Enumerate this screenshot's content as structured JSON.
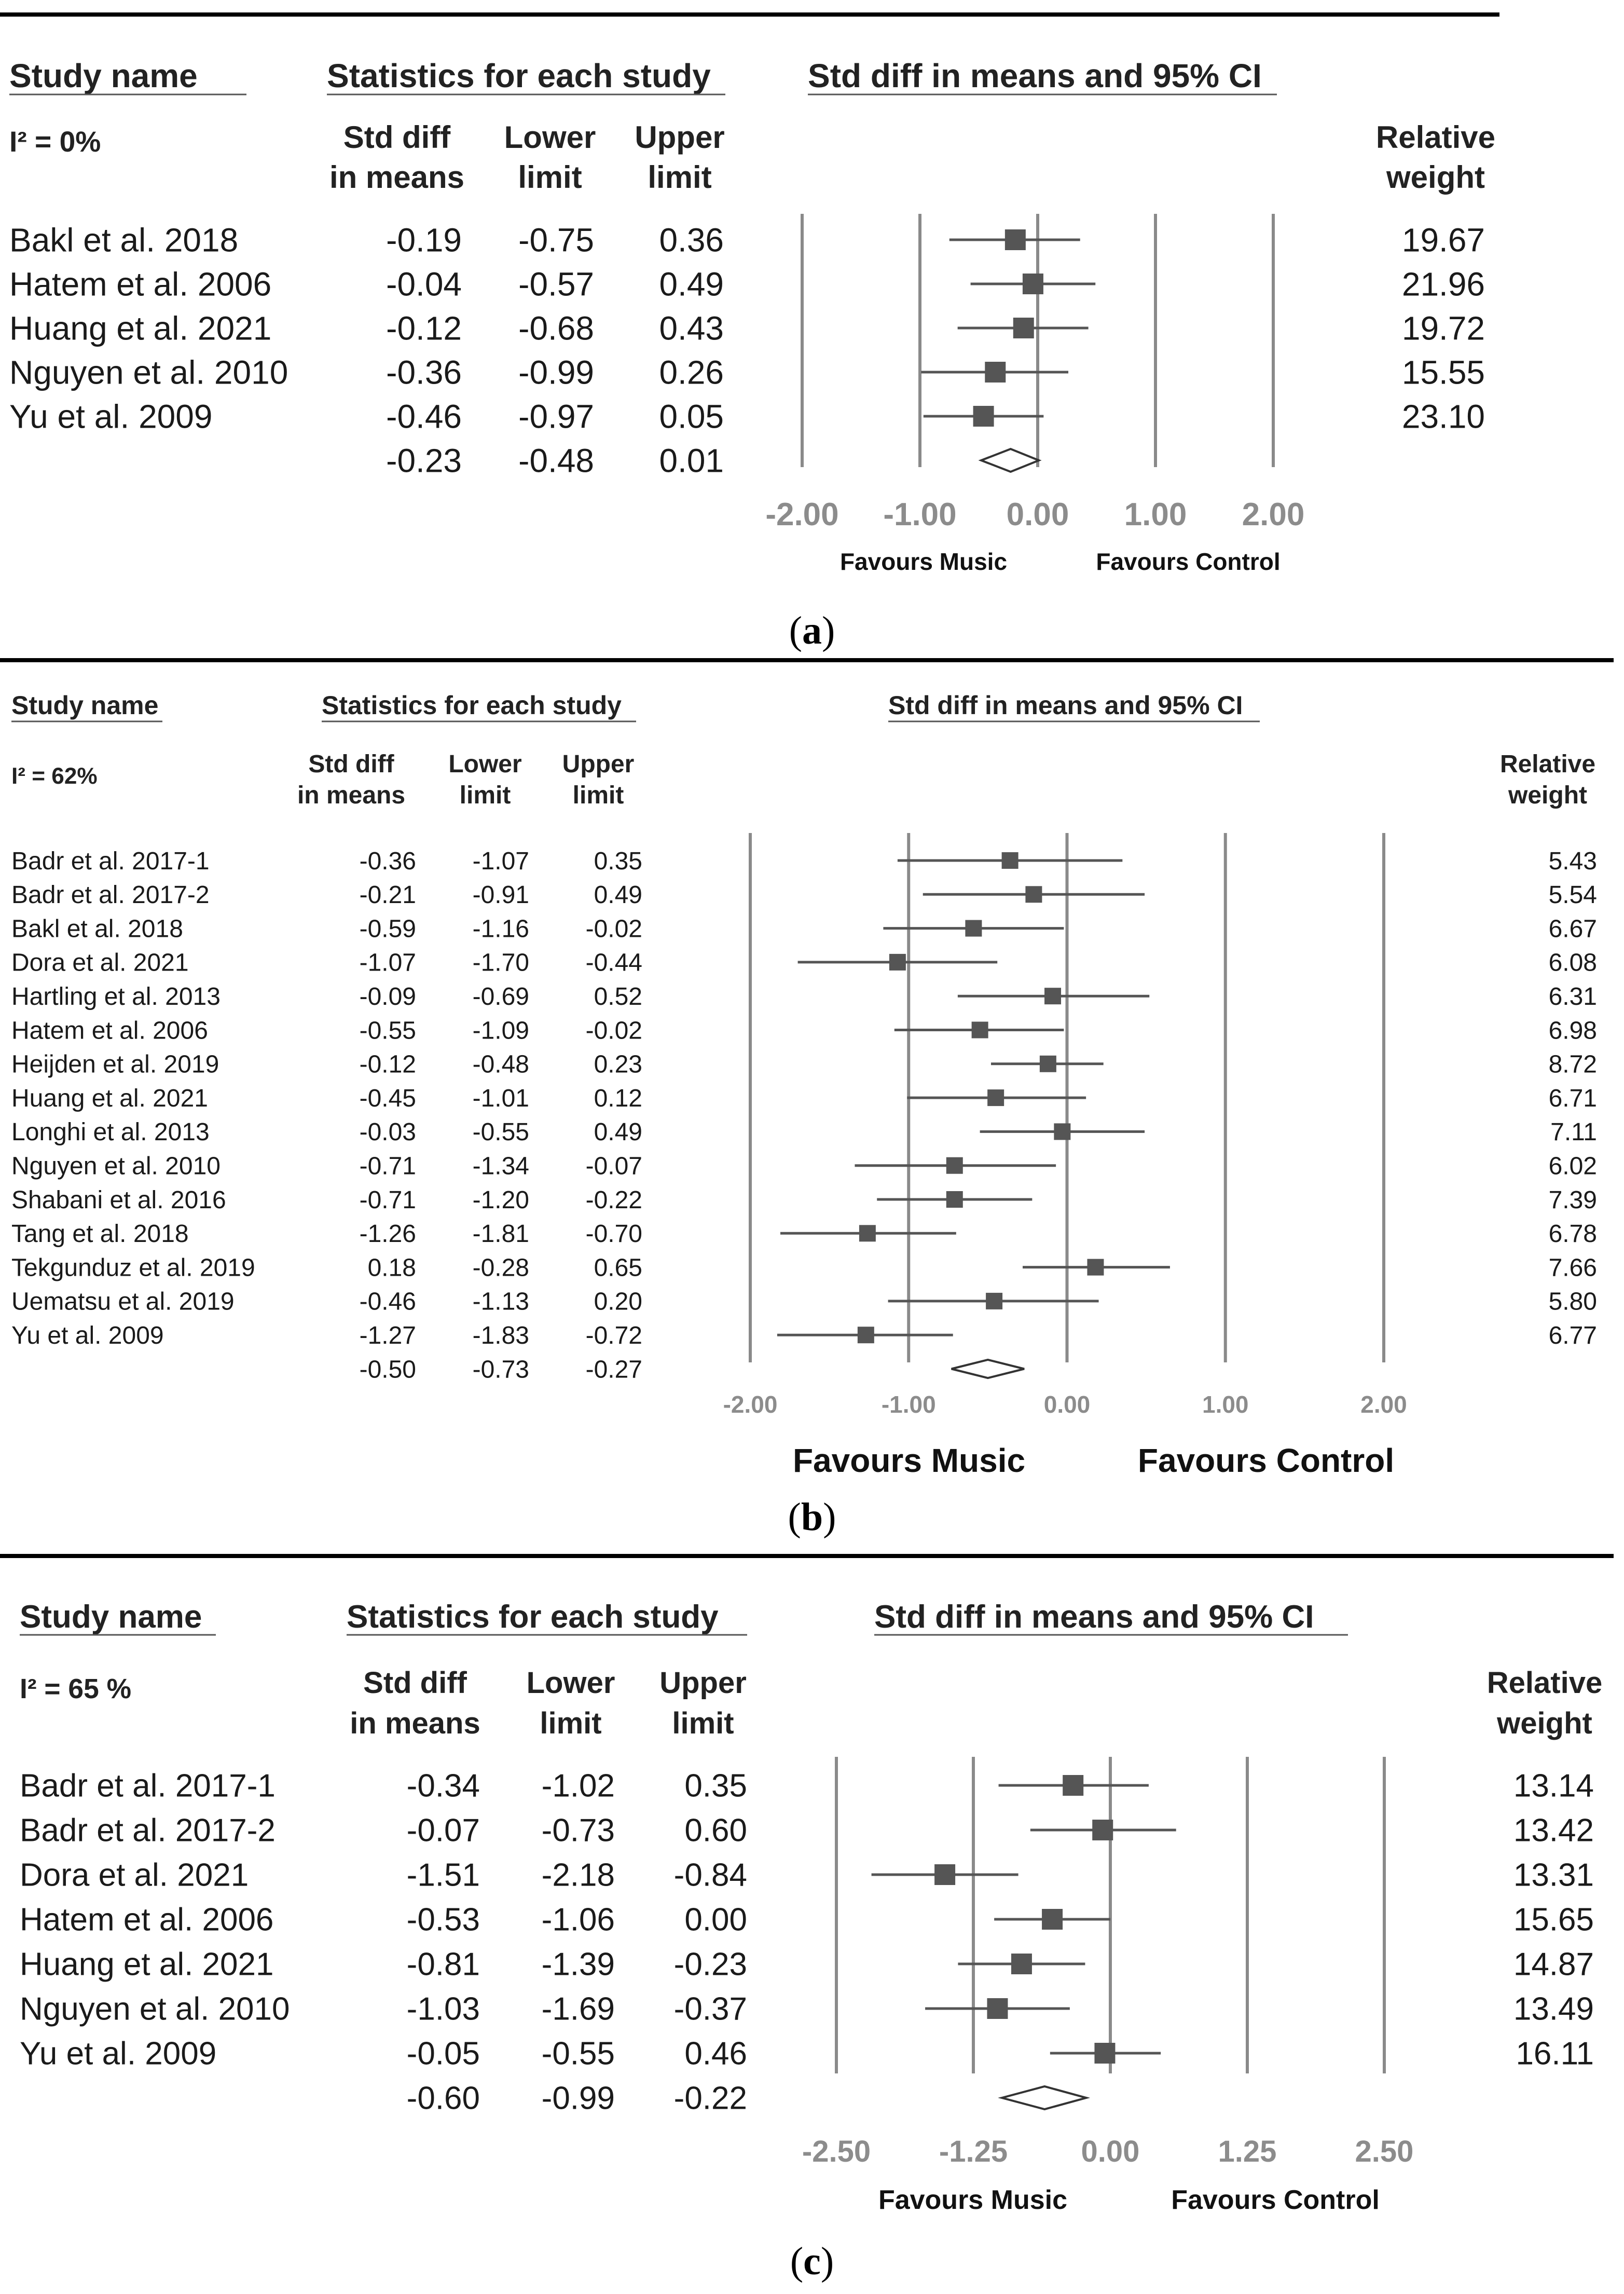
{
  "chart_data": [
    {
      "type": "forest",
      "caption": "a",
      "headers": {
        "study": "Study name",
        "stats": "Statistics for each study",
        "ci": "Std diff in means and 95% CI",
        "heterogeneity": "I² = 0%",
        "col_diff": [
          "Std diff",
          "in means"
        ],
        "col_lower": [
          "Lower",
          "limit"
        ],
        "col_upper": [
          "Upper",
          "limit"
        ],
        "col_weight": [
          "Relative",
          "weight"
        ]
      },
      "studies": [
        {
          "name": "Bakl et al. 2018",
          "diff": "-0.19",
          "lower": "-0.75",
          "upper": "0.36",
          "weight": "19.67"
        },
        {
          "name": "Hatem et al. 2006",
          "diff": "-0.04",
          "lower": "-0.57",
          "upper": "0.49",
          "weight": "21.96"
        },
        {
          "name": "Huang et al. 2021",
          "diff": "-0.12",
          "lower": "-0.68",
          "upper": "0.43",
          "weight": "19.72"
        },
        {
          "name": "Nguyen et al. 2010",
          "diff": "-0.36",
          "lower": "-0.99",
          "upper": "0.26",
          "weight": "15.55"
        },
        {
          "name": "Yu et al. 2009",
          "diff": "-0.46",
          "lower": "-0.97",
          "upper": "0.05",
          "weight": "23.10"
        }
      ],
      "summary": {
        "diff": "-0.23",
        "lower": "-0.48",
        "upper": "0.01"
      },
      "xlim": [
        -2,
        2
      ],
      "ticks": [
        "-2.00",
        "-1.00",
        "0.00",
        "1.00",
        "2.00"
      ],
      "favours_left": "Favours Music",
      "favours_right": "Favours Control"
    },
    {
      "type": "forest",
      "caption": "b",
      "headers": {
        "study": "Study name",
        "stats": "Statistics for each study",
        "ci": "Std diff in means and 95% CI",
        "heterogeneity": "I² = 62%",
        "col_diff": [
          "Std diff",
          "in means"
        ],
        "col_lower": [
          "Lower",
          "limit"
        ],
        "col_upper": [
          "Upper",
          "limit"
        ],
        "col_weight": [
          "Relative",
          "weight"
        ]
      },
      "studies": [
        {
          "name": "Badr et al. 2017-1",
          "diff": "-0.36",
          "lower": "-1.07",
          "upper": "0.35",
          "weight": "5.43"
        },
        {
          "name": "Badr et al. 2017-2",
          "diff": "-0.21",
          "lower": "-0.91",
          "upper": "0.49",
          "weight": "5.54"
        },
        {
          "name": "Bakl et al. 2018",
          "diff": "-0.59",
          "lower": "-1.16",
          "upper": "-0.02",
          "weight": "6.67"
        },
        {
          "name": "Dora et al. 2021",
          "diff": "-1.07",
          "lower": "-1.70",
          "upper": "-0.44",
          "weight": "6.08"
        },
        {
          "name": "Hartling et al. 2013",
          "diff": "-0.09",
          "lower": "-0.69",
          "upper": "0.52",
          "weight": "6.31"
        },
        {
          "name": "Hatem et al. 2006",
          "diff": "-0.55",
          "lower": "-1.09",
          "upper": "-0.02",
          "weight": "6.98"
        },
        {
          "name": "Heijden et al. 2019",
          "diff": "-0.12",
          "lower": "-0.48",
          "upper": "0.23",
          "weight": "8.72"
        },
        {
          "name": "Huang et al. 2021",
          "diff": "-0.45",
          "lower": "-1.01",
          "upper": "0.12",
          "weight": "6.71"
        },
        {
          "name": "Longhi et al. 2013",
          "diff": "-0.03",
          "lower": "-0.55",
          "upper": "0.49",
          "weight": "7.11"
        },
        {
          "name": "Nguyen et al. 2010",
          "diff": "-0.71",
          "lower": "-1.34",
          "upper": "-0.07",
          "weight": "6.02"
        },
        {
          "name": "Shabani et al. 2016",
          "diff": "-0.71",
          "lower": "-1.20",
          "upper": "-0.22",
          "weight": "7.39"
        },
        {
          "name": "Tang et al. 2018",
          "diff": "-1.26",
          "lower": "-1.81",
          "upper": "-0.70",
          "weight": "6.78"
        },
        {
          "name": "Tekgunduz et al. 2019",
          "diff": "0.18",
          "lower": "-0.28",
          "upper": "0.65",
          "weight": "7.66"
        },
        {
          "name": "Uematsu et al. 2019",
          "diff": "-0.46",
          "lower": "-1.13",
          "upper": "0.20",
          "weight": "5.80"
        },
        {
          "name": "Yu et al. 2009",
          "diff": "-1.27",
          "lower": "-1.83",
          "upper": "-0.72",
          "weight": "6.77"
        }
      ],
      "summary": {
        "diff": "-0.50",
        "lower": "-0.73",
        "upper": "-0.27"
      },
      "xlim": [
        -2,
        2
      ],
      "ticks": [
        "-2.00",
        "-1.00",
        "0.00",
        "1.00",
        "2.00"
      ],
      "favours_left": "Favours Music",
      "favours_right": "Favours Control"
    },
    {
      "type": "forest",
      "caption": "c",
      "headers": {
        "study": "Study name",
        "stats": "Statistics for each study",
        "ci": "Std diff in means and 95% CI",
        "heterogeneity": "I² = 65 %",
        "col_diff": [
          "Std diff",
          "in means"
        ],
        "col_lower": [
          "Lower",
          "limit"
        ],
        "col_upper": [
          "Upper",
          "limit"
        ],
        "col_weight": [
          "Relative",
          "weight"
        ]
      },
      "studies": [
        {
          "name": "Badr et al. 2017-1",
          "diff": "-0.34",
          "lower": "-1.02",
          "upper": "0.35",
          "weight": "13.14"
        },
        {
          "name": "Badr et al. 2017-2",
          "diff": "-0.07",
          "lower": "-0.73",
          "upper": "0.60",
          "weight": "13.42"
        },
        {
          "name": "Dora et al. 2021",
          "diff": "-1.51",
          "lower": "-2.18",
          "upper": "-0.84",
          "weight": "13.31"
        },
        {
          "name": "Hatem et al. 2006",
          "diff": "-0.53",
          "lower": "-1.06",
          "upper": "0.00",
          "weight": "15.65"
        },
        {
          "name": "Huang et al. 2021",
          "diff": "-0.81",
          "lower": "-1.39",
          "upper": "-0.23",
          "weight": "14.87"
        },
        {
          "name": "Nguyen et al. 2010",
          "diff": "-1.03",
          "lower": "-1.69",
          "upper": "-0.37",
          "weight": "13.49"
        },
        {
          "name": "Yu et al. 2009",
          "diff": "-0.05",
          "lower": "-0.55",
          "upper": "0.46",
          "weight": "16.11"
        }
      ],
      "summary": {
        "diff": "-0.60",
        "lower": "-0.99",
        "upper": "-0.22"
      },
      "xlim": [
        -2.5,
        2.5
      ],
      "ticks": [
        "-2.50",
        "-1.25",
        "0.00",
        "1.25",
        "2.50"
      ],
      "favours_left": "Favours Music",
      "favours_right": "Favours Control"
    }
  ]
}
